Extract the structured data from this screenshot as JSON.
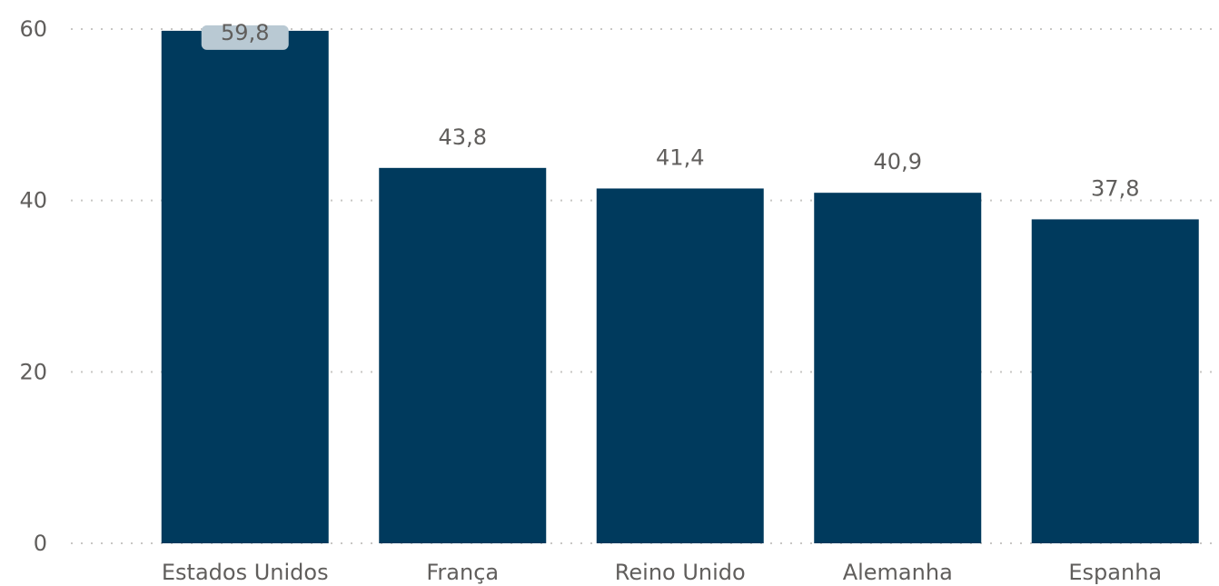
{
  "chart_data": {
    "type": "bar",
    "categories": [
      "Estados Unidos",
      "França",
      "Reino Unido",
      "Alemanha",
      "Espanha"
    ],
    "values": [
      59.8,
      43.8,
      41.4,
      40.9,
      37.8
    ],
    "data_labels": [
      "59,8",
      "43,8",
      "41,4",
      "40,9",
      "37,8"
    ],
    "y_ticks": [
      0,
      20,
      40,
      60
    ],
    "y_tick_labels": [
      "0",
      "20",
      "40",
      "60"
    ],
    "ylim": [
      0,
      60
    ],
    "grid": true,
    "bar_color": "#003A5D",
    "highlight_label_bg": "#B9C9D3",
    "label_color": "#605E5C",
    "grid_color": "#C8C6C4"
  }
}
